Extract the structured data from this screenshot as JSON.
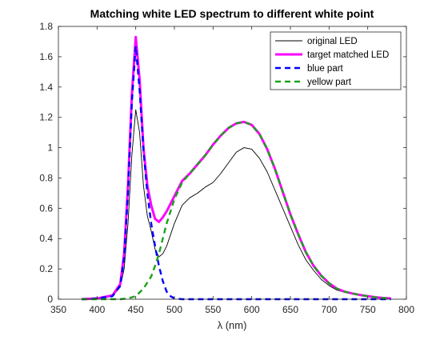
{
  "chart_data": {
    "type": "line",
    "title": "Matching white LED spectrum to different white point",
    "xlabel": "λ (nm)",
    "ylabel": "",
    "xlim": [
      350,
      800
    ],
    "ylim": [
      0,
      1.8
    ],
    "xticks": [
      350,
      400,
      450,
      500,
      550,
      600,
      650,
      700,
      750,
      800
    ],
    "yticks": [
      0,
      0.2,
      0.4,
      0.6,
      0.8,
      1,
      1.2,
      1.4,
      1.6,
      1.8
    ],
    "grid": false,
    "legend_position": "top-right",
    "series": [
      {
        "name": "original LED",
        "color": "#000000",
        "style": "solid",
        "x": [
          380,
          400,
          420,
          430,
          435,
          440,
          445,
          450,
          455,
          460,
          465,
          470,
          475,
          480,
          485,
          490,
          500,
          510,
          520,
          530,
          540,
          550,
          560,
          570,
          580,
          590,
          600,
          610,
          620,
          630,
          640,
          650,
          660,
          670,
          680,
          690,
          700,
          710,
          720,
          730,
          740,
          750,
          760,
          770,
          780
        ],
        "y": [
          0,
          0.005,
          0.02,
          0.08,
          0.2,
          0.5,
          0.95,
          1.25,
          1.1,
          0.75,
          0.55,
          0.45,
          0.33,
          0.28,
          0.3,
          0.35,
          0.5,
          0.62,
          0.67,
          0.7,
          0.74,
          0.77,
          0.83,
          0.9,
          0.97,
          1.0,
          0.99,
          0.93,
          0.84,
          0.72,
          0.6,
          0.48,
          0.36,
          0.26,
          0.19,
          0.13,
          0.09,
          0.06,
          0.045,
          0.035,
          0.025,
          0.018,
          0.012,
          0.008,
          0.005
        ]
      },
      {
        "name": "target matched LED",
        "color": "#ff00ff",
        "style": "solid",
        "x": [
          380,
          400,
          420,
          430,
          435,
          440,
          445,
          450,
          455,
          460,
          465,
          470,
          475,
          480,
          485,
          490,
          500,
          510,
          520,
          530,
          540,
          550,
          560,
          570,
          580,
          590,
          600,
          610,
          620,
          630,
          640,
          650,
          660,
          670,
          680,
          690,
          700,
          710,
          720,
          730,
          740,
          750,
          760,
          770,
          780
        ],
        "y": [
          0,
          0.005,
          0.025,
          0.1,
          0.3,
          0.75,
          1.35,
          1.73,
          1.45,
          1.0,
          0.75,
          0.62,
          0.53,
          0.51,
          0.54,
          0.58,
          0.68,
          0.78,
          0.83,
          0.89,
          0.95,
          1.02,
          1.08,
          1.13,
          1.16,
          1.17,
          1.15,
          1.09,
          0.99,
          0.86,
          0.71,
          0.56,
          0.43,
          0.31,
          0.22,
          0.155,
          0.105,
          0.07,
          0.05,
          0.038,
          0.028,
          0.02,
          0.013,
          0.008,
          0.005
        ]
      },
      {
        "name": "blue part",
        "color": "#0000ff",
        "style": "dashed",
        "x": [
          380,
          400,
          420,
          430,
          435,
          440,
          445,
          450,
          455,
          460,
          465,
          470,
          475,
          480,
          485,
          490,
          495,
          500,
          510,
          520,
          560,
          600,
          650,
          700,
          750,
          780
        ],
        "y": [
          0,
          0.005,
          0.02,
          0.09,
          0.28,
          0.7,
          1.3,
          1.67,
          1.38,
          0.98,
          0.7,
          0.5,
          0.35,
          0.22,
          0.12,
          0.05,
          0.02,
          0.005,
          0,
          0,
          0,
          0,
          0,
          0,
          0,
          0
        ]
      },
      {
        "name": "yellow part",
        "color": "#1aa31a",
        "style": "dashed",
        "x": [
          380,
          430,
          440,
          450,
          460,
          470,
          475,
          480,
          485,
          490,
          500,
          510,
          520,
          530,
          540,
          550,
          560,
          570,
          580,
          590,
          600,
          610,
          620,
          630,
          640,
          650,
          660,
          670,
          680,
          690,
          700,
          710,
          720,
          730,
          740,
          750,
          760,
          770,
          780
        ],
        "y": [
          0,
          0,
          0.005,
          0.02,
          0.07,
          0.15,
          0.22,
          0.3,
          0.4,
          0.5,
          0.66,
          0.77,
          0.83,
          0.89,
          0.95,
          1.02,
          1.08,
          1.13,
          1.16,
          1.17,
          1.15,
          1.09,
          0.99,
          0.86,
          0.71,
          0.56,
          0.43,
          0.31,
          0.22,
          0.155,
          0.105,
          0.07,
          0.05,
          0.038,
          0.028,
          0.02,
          0.013,
          0.008,
          0.005
        ]
      }
    ]
  }
}
